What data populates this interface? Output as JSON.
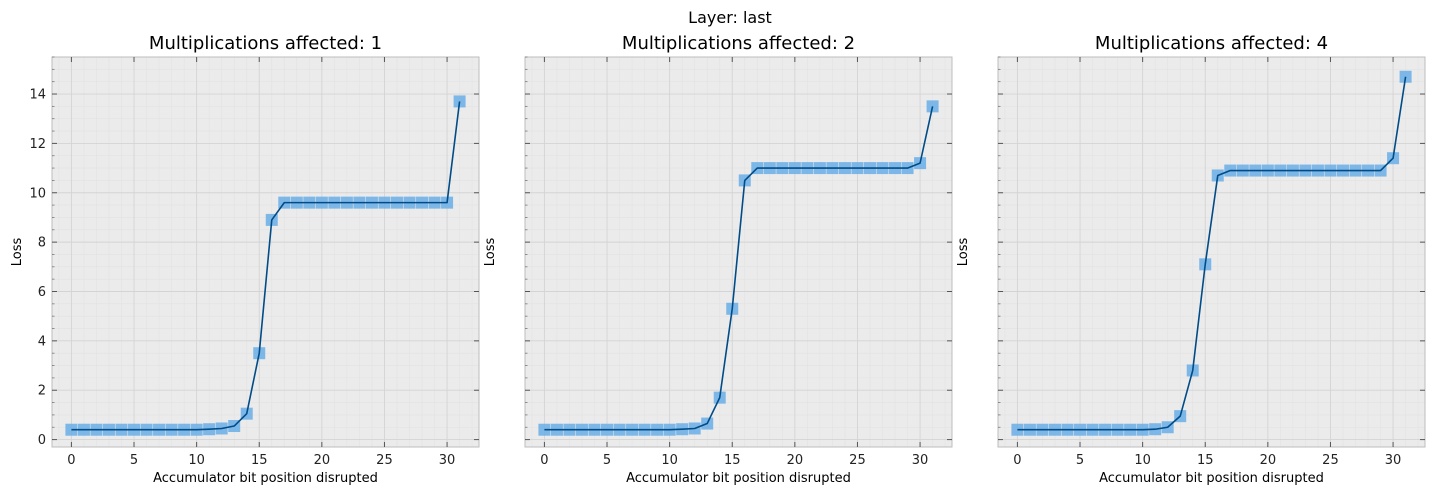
{
  "figure": {
    "suptitle": "Layer: last"
  },
  "colors": {
    "background": "#ebebeb",
    "grid": "#d4d4d4",
    "grid_minor": "#e2e2e2",
    "line": "#004c88",
    "marker": "#6aaee6",
    "spine": "#bcbcbc"
  },
  "chart_data": [
    {
      "type": "line",
      "title": "Multiplications affected: 1",
      "xlabel": "Accumulator bit position disrupted",
      "ylabel": "Loss",
      "xlim": [
        -1.55,
        32.55
      ],
      "ylim": [
        -0.3,
        15.5
      ],
      "xticks": [
        0,
        5,
        10,
        15,
        20,
        25,
        30
      ],
      "yticks": [
        0,
        2,
        4,
        6,
        8,
        10,
        12,
        14
      ],
      "x": [
        0,
        1,
        2,
        3,
        4,
        5,
        6,
        7,
        8,
        9,
        10,
        11,
        12,
        13,
        14,
        15,
        16,
        17,
        18,
        19,
        20,
        21,
        22,
        23,
        24,
        25,
        26,
        27,
        28,
        29,
        30,
        31
      ],
      "y": [
        0.4,
        0.4,
        0.4,
        0.4,
        0.4,
        0.4,
        0.4,
        0.4,
        0.4,
        0.4,
        0.4,
        0.42,
        0.45,
        0.55,
        1.05,
        3.5,
        8.9,
        9.6,
        9.6,
        9.6,
        9.6,
        9.6,
        9.6,
        9.6,
        9.6,
        9.6,
        9.6,
        9.6,
        9.6,
        9.6,
        9.6,
        13.7
      ],
      "grid": true,
      "marker": "square"
    },
    {
      "type": "line",
      "title": "Multiplications affected: 2",
      "xlabel": "Accumulator bit position disrupted",
      "ylabel": "Loss",
      "xlim": [
        -1.55,
        32.55
      ],
      "ylim": [
        -0.3,
        15.5
      ],
      "xticks": [
        0,
        5,
        10,
        15,
        20,
        25,
        30
      ],
      "yticks": [],
      "x": [
        0,
        1,
        2,
        3,
        4,
        5,
        6,
        7,
        8,
        9,
        10,
        11,
        12,
        13,
        14,
        15,
        16,
        17,
        18,
        19,
        20,
        21,
        22,
        23,
        24,
        25,
        26,
        27,
        28,
        29,
        30,
        31
      ],
      "y": [
        0.4,
        0.4,
        0.4,
        0.4,
        0.4,
        0.4,
        0.4,
        0.4,
        0.4,
        0.4,
        0.4,
        0.42,
        0.45,
        0.65,
        1.7,
        5.3,
        10.5,
        11.0,
        11.0,
        11.0,
        11.0,
        11.0,
        11.0,
        11.0,
        11.0,
        11.0,
        11.0,
        11.0,
        11.0,
        11.0,
        11.2,
        13.5
      ],
      "grid": true,
      "marker": "square"
    },
    {
      "type": "line",
      "title": "Multiplications affected: 4",
      "xlabel": "Accumulator bit position disrupted",
      "ylabel": "Loss",
      "xlim": [
        -1.55,
        32.55
      ],
      "ylim": [
        -0.3,
        15.5
      ],
      "xticks": [
        0,
        5,
        10,
        15,
        20,
        25,
        30
      ],
      "yticks": [],
      "x": [
        0,
        1,
        2,
        3,
        4,
        5,
        6,
        7,
        8,
        9,
        10,
        11,
        12,
        13,
        14,
        15,
        16,
        17,
        18,
        19,
        20,
        21,
        22,
        23,
        24,
        25,
        26,
        27,
        28,
        29,
        30,
        31
      ],
      "y": [
        0.4,
        0.4,
        0.4,
        0.4,
        0.4,
        0.4,
        0.4,
        0.4,
        0.4,
        0.4,
        0.4,
        0.42,
        0.5,
        0.95,
        2.8,
        7.1,
        10.7,
        10.9,
        10.9,
        10.9,
        10.9,
        10.9,
        10.9,
        10.9,
        10.9,
        10.9,
        10.9,
        10.9,
        10.9,
        10.9,
        11.4,
        14.7
      ],
      "grid": true,
      "marker": "square"
    }
  ]
}
